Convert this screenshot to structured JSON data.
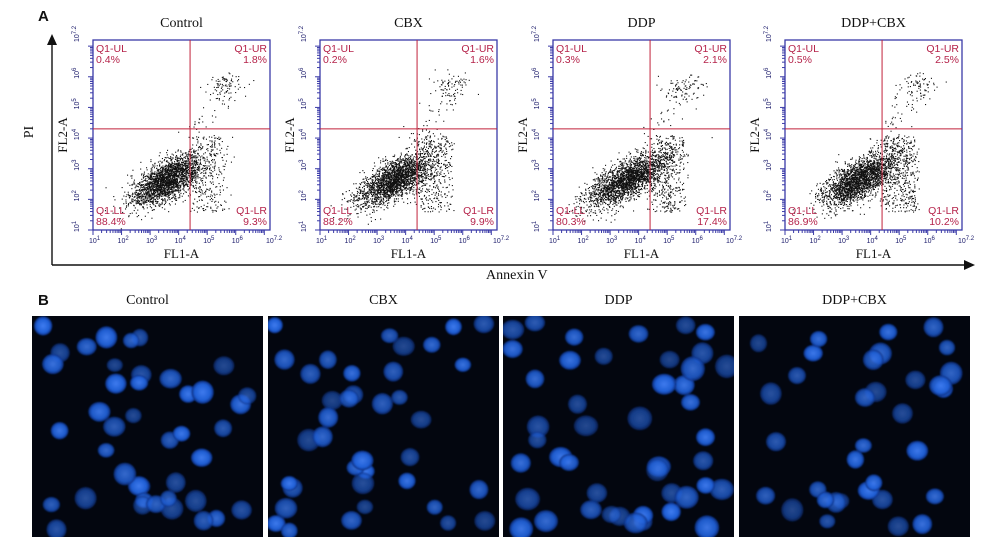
{
  "panel_a_label": "A",
  "panel_b_label": "B",
  "y_axis_title": "PI",
  "x_axis_title": "Annexin V",
  "chart_data": [
    {
      "type": "scatter",
      "title": "Control",
      "xlabel": "FL1-A",
      "ylabel": "FL2-A",
      "scale": "log",
      "xlim": [
        1,
        7.2
      ],
      "ylim": [
        1,
        7.2
      ],
      "gate": {
        "x": 4.4,
        "y": 4.3
      },
      "quadrants": [
        {
          "name": "Q1-UL",
          "value": "0.4%"
        },
        {
          "name": "Q1-UR",
          "value": "1.8%"
        },
        {
          "name": "Q1-LL",
          "value": "88.4%"
        },
        {
          "name": "Q1-LR",
          "value": "9.3%"
        }
      ]
    },
    {
      "type": "scatter",
      "title": "CBX",
      "xlabel": "FL1-A",
      "ylabel": "FL2-A",
      "scale": "log",
      "xlim": [
        1,
        7.2
      ],
      "ylim": [
        1,
        7.2
      ],
      "gate": {
        "x": 4.4,
        "y": 4.3
      },
      "quadrants": [
        {
          "name": "Q1-UL",
          "value": "0.2%"
        },
        {
          "name": "Q1-UR",
          "value": "1.6%"
        },
        {
          "name": "Q1-LL",
          "value": "88.2%"
        },
        {
          "name": "Q1-LR",
          "value": "9.9%"
        }
      ]
    },
    {
      "type": "scatter",
      "title": "DDP",
      "xlabel": "FL1-A",
      "ylabel": "FL2-A",
      "scale": "log",
      "xlim": [
        1,
        7.2
      ],
      "ylim": [
        1,
        7.2
      ],
      "gate": {
        "x": 4.4,
        "y": 4.3
      },
      "quadrants": [
        {
          "name": "Q1-UL",
          "value": "0.3%"
        },
        {
          "name": "Q1-UR",
          "value": "2.1%"
        },
        {
          "name": "Q1-LL",
          "value": "80.3%"
        },
        {
          "name": "Q1-LR",
          "value": "17.4%"
        }
      ]
    },
    {
      "type": "scatter",
      "title": "DDP+CBX",
      "xlabel": "FL1-A",
      "ylabel": "FL2-A",
      "scale": "log",
      "xlim": [
        1,
        7.2
      ],
      "ylim": [
        1,
        7.2
      ],
      "gate": {
        "x": 4.4,
        "y": 4.3
      },
      "quadrants": [
        {
          "name": "Q1-UL",
          "value": "0.5%"
        },
        {
          "name": "Q1-UR",
          "value": "2.5%"
        },
        {
          "name": "Q1-LL",
          "value": "86.9%"
        },
        {
          "name": "Q1-LR",
          "value": "10.2%"
        }
      ]
    }
  ],
  "tick_labels": [
    "10^1",
    "10^2",
    "10^3",
    "10^4",
    "10^5",
    "10^6",
    "10^7.2"
  ],
  "micrographs": [
    {
      "title": "Control",
      "cell_count": 42
    },
    {
      "title": "CBX",
      "cell_count": 38
    },
    {
      "title": "DDP",
      "cell_count": 45
    },
    {
      "title": "DDP+CBX",
      "cell_count": 34
    }
  ],
  "colors": {
    "plot_frame": "#3a3aa8",
    "gate_line": "#c0223a",
    "quadrant_text": "#b5234a",
    "dots": "#111111",
    "nucleus": "#1f5fd6",
    "micro_background": "#03060f"
  }
}
